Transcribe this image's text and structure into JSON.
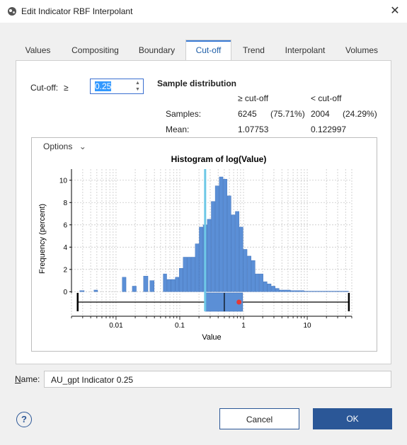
{
  "window": {
    "title": "Edit Indicator RBF Interpolant",
    "close_glyph": "✕"
  },
  "tabs": [
    {
      "label": "Values"
    },
    {
      "label": "Compositing"
    },
    {
      "label": "Boundary"
    },
    {
      "label": "Cut-off",
      "active": true
    },
    {
      "label": "Trend"
    },
    {
      "label": "Interpolant"
    },
    {
      "label": "Volumes"
    }
  ],
  "cutoff": {
    "label": "Cut-off:",
    "operator": "≥",
    "value": "0.25"
  },
  "distribution": {
    "heading": "Sample distribution",
    "col_ge": "≥ cut-off",
    "col_lt": "< cut-off",
    "samples_label": "Samples:",
    "samples_ge": "6245",
    "samples_ge_pct": "(75.71%)",
    "samples_lt": "2004",
    "samples_lt_pct": "(24.29%)",
    "mean_label": "Mean:",
    "mean_ge": "1.07753",
    "mean_lt": "0.122997"
  },
  "options": {
    "label": "Options",
    "chevron": "⌄"
  },
  "chart_data": {
    "type": "bar",
    "title": "Histogram of log(Value)",
    "xlabel": "Value",
    "ylabel": "Frequency (percent)",
    "x_scale": "log",
    "xlim": [
      0.002,
      50
    ],
    "ylim": [
      -2.2,
      11
    ],
    "y_ticks": [
      0,
      2,
      4,
      6,
      8,
      10
    ],
    "x_ticks": [
      {
        "value": 0.01,
        "label": "0.01"
      },
      {
        "value": 0.1,
        "label": "0.1"
      },
      {
        "value": 1,
        "label": "1"
      },
      {
        "value": 10,
        "label": "10"
      }
    ],
    "grid": true,
    "cutoff_line": 0.25,
    "colors": {
      "bars": "#5b8fd6",
      "bar_edge": "#3a6db7",
      "cutoff": "#6ec8e6",
      "mean_marker": "#e53935"
    },
    "bins": [
      {
        "x0": 0.0027,
        "x1": 0.0032,
        "value": 0.1
      },
      {
        "x0": 0.0045,
        "x1": 0.0052,
        "value": 0.15
      },
      {
        "x0": 0.0125,
        "x1": 0.0145,
        "value": 1.3
      },
      {
        "x0": 0.018,
        "x1": 0.021,
        "value": 0.5
      },
      {
        "x0": 0.027,
        "x1": 0.032,
        "value": 1.4
      },
      {
        "x0": 0.034,
        "x1": 0.04,
        "value": 1.0
      },
      {
        "x0": 0.055,
        "x1": 0.063,
        "value": 1.6
      },
      {
        "x0": 0.063,
        "x1": 0.073,
        "value": 1.1
      },
      {
        "x0": 0.073,
        "x1": 0.085,
        "value": 1.1
      },
      {
        "x0": 0.085,
        "x1": 0.098,
        "value": 1.3
      },
      {
        "x0": 0.098,
        "x1": 0.113,
        "value": 2.1
      },
      {
        "x0": 0.113,
        "x1": 0.131,
        "value": 3.1
      },
      {
        "x0": 0.131,
        "x1": 0.151,
        "value": 3.1
      },
      {
        "x0": 0.151,
        "x1": 0.175,
        "value": 3.1
      },
      {
        "x0": 0.175,
        "x1": 0.202,
        "value": 4.3
      },
      {
        "x0": 0.202,
        "x1": 0.233,
        "value": 5.8
      },
      {
        "x0": 0.233,
        "x1": 0.27,
        "value": 6.0
      },
      {
        "x0": 0.27,
        "x1": 0.312,
        "value": 6.5
      },
      {
        "x0": 0.312,
        "x1": 0.36,
        "value": 8.1
      },
      {
        "x0": 0.36,
        "x1": 0.417,
        "value": 9.5
      },
      {
        "x0": 0.417,
        "x1": 0.482,
        "value": 10.3
      },
      {
        "x0": 0.482,
        "x1": 0.557,
        "value": 10.1
      },
      {
        "x0": 0.557,
        "x1": 0.644,
        "value": 8.6
      },
      {
        "x0": 0.644,
        "x1": 0.744,
        "value": 6.9
      },
      {
        "x0": 0.744,
        "x1": 0.86,
        "value": 7.2
      },
      {
        "x0": 0.86,
        "x1": 0.994,
        "value": 5.8
      },
      {
        "x0": 0.994,
        "x1": 1.149,
        "value": 3.8
      },
      {
        "x0": 1.149,
        "x1": 1.328,
        "value": 3.2
      },
      {
        "x0": 1.328,
        "x1": 1.535,
        "value": 2.8
      },
      {
        "x0": 1.535,
        "x1": 1.774,
        "value": 1.6
      },
      {
        "x0": 1.774,
        "x1": 2.05,
        "value": 1.6
      },
      {
        "x0": 2.05,
        "x1": 2.37,
        "value": 0.9
      },
      {
        "x0": 2.37,
        "x1": 2.74,
        "value": 0.7
      },
      {
        "x0": 2.74,
        "x1": 3.166,
        "value": 0.5
      },
      {
        "x0": 3.166,
        "x1": 3.66,
        "value": 0.3
      },
      {
        "x0": 3.66,
        "x1": 4.23,
        "value": 0.15
      },
      {
        "x0": 4.23,
        "x1": 5.5,
        "value": 0.15
      },
      {
        "x0": 5.5,
        "x1": 9.0,
        "value": 0.1
      },
      {
        "x0": 9.0,
        "x1": 18.0,
        "value": 0.05
      },
      {
        "x0": 18.0,
        "x1": 45.0,
        "value": 0.05
      }
    ],
    "boxplot": {
      "min": 0.0025,
      "q1": 0.25,
      "median": 0.5,
      "q3": 0.97,
      "max": 45,
      "mean": 0.85
    }
  },
  "name": {
    "label": "Name:",
    "value": "AU_gpt Indicator 0.25"
  },
  "buttons": {
    "help": "?",
    "cancel": "Cancel",
    "ok": "OK"
  }
}
